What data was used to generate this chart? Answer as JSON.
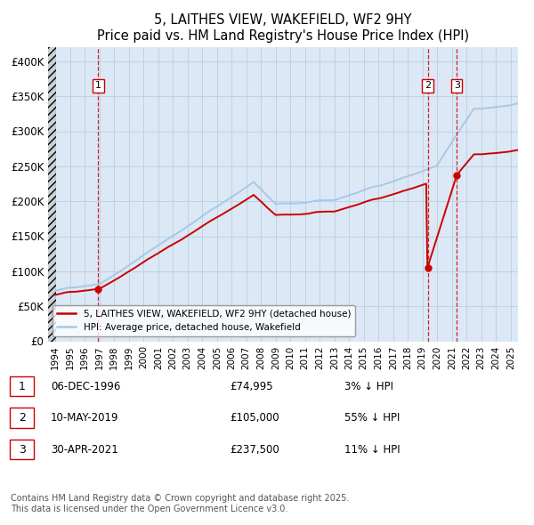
{
  "title": "5, LAITHES VIEW, WAKEFIELD, WF2 9HY",
  "subtitle": "Price paid vs. HM Land Registry's House Price Index (HPI)",
  "xlim": [
    1993.5,
    2025.5
  ],
  "ylim": [
    0,
    420000
  ],
  "yticks": [
    0,
    50000,
    100000,
    150000,
    200000,
    250000,
    300000,
    350000,
    400000
  ],
  "ytick_labels": [
    "£0",
    "£50K",
    "£100K",
    "£150K",
    "£200K",
    "£250K",
    "£300K",
    "£350K",
    "£400K"
  ],
  "xticks": [
    1994,
    1995,
    1996,
    1997,
    1998,
    1999,
    2000,
    2001,
    2002,
    2003,
    2004,
    2005,
    2006,
    2007,
    2008,
    2009,
    2010,
    2011,
    2012,
    2013,
    2014,
    2015,
    2016,
    2017,
    2018,
    2019,
    2020,
    2021,
    2022,
    2023,
    2024,
    2025
  ],
  "hpi_color": "#a8c8e8",
  "price_color": "#cc0000",
  "marker_color": "#cc0000",
  "vline_color": "#cc0000",
  "marker_label_border": "#cc0000",
  "plot_bg": "#dce8f5",
  "grid_color": "#b8cfe0",
  "legend_label_price": "5, LAITHES VIEW, WAKEFIELD, WF2 9HY (detached house)",
  "legend_label_hpi": "HPI: Average price, detached house, Wakefield",
  "table_rows": [
    {
      "num": "1",
      "date": "06-DEC-1996",
      "price": "£74,995",
      "rel": "3% ↓ HPI"
    },
    {
      "num": "2",
      "date": "10-MAY-2019",
      "price": "£105,000",
      "rel": "55% ↓ HPI"
    },
    {
      "num": "3",
      "date": "30-APR-2021",
      "price": "£237,500",
      "rel": "11% ↓ HPI"
    }
  ],
  "footnote": "Contains HM Land Registry data © Crown copyright and database right 2025.\nThis data is licensed under the Open Government Licence v3.0.",
  "sale1_year": 1996.92,
  "sale1_price": 74995,
  "sale2_year": 2019.36,
  "sale2_price": 105000,
  "sale3_year": 2021.33,
  "sale3_price": 237500
}
